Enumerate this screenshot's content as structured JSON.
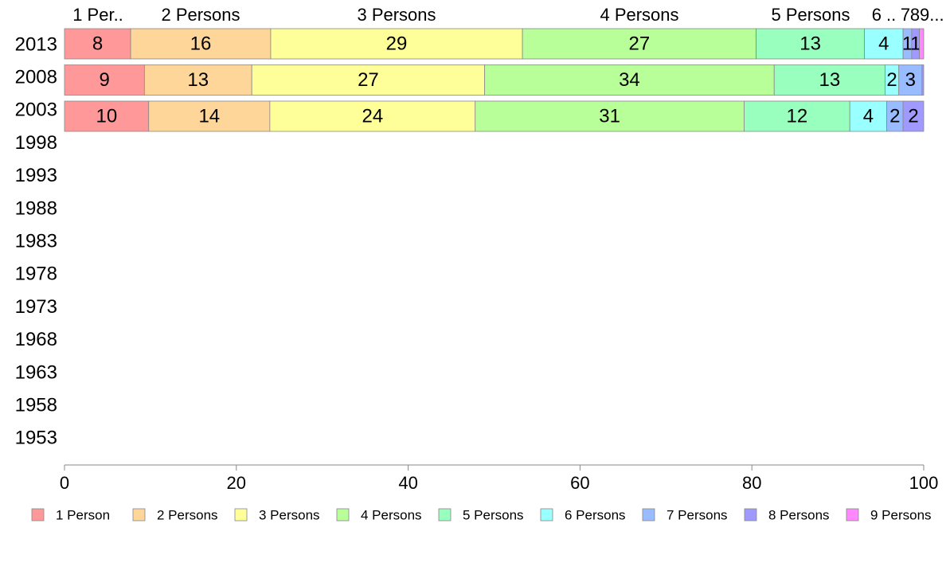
{
  "chart_data": {
    "type": "bar",
    "orientation": "horizontal",
    "stacked": true,
    "title": "",
    "xlabel": "",
    "ylabel": "",
    "xlim": [
      0,
      100
    ],
    "x_ticks": [
      "0",
      "20",
      "40",
      "60",
      "80",
      "100"
    ],
    "categories": [
      "2013",
      "2008",
      "2003",
      "1998",
      "1993",
      "1988",
      "1983",
      "1978",
      "1973",
      "1968",
      "1963",
      "1958",
      "1953"
    ],
    "top_labels": [
      "1 Per..",
      "2 Persons",
      "3 Persons",
      "4 Persons",
      "5 Persons",
      "6 ..",
      "7",
      "8",
      "9..."
    ],
    "legend_position": "bottom",
    "grid": false,
    "series": [
      {
        "name": "1 Person",
        "color": "#ff9999",
        "values": [
          7.7,
          9.3,
          9.8,
          null,
          null,
          null,
          null,
          null,
          null,
          null,
          null,
          null,
          null
        ],
        "labels": [
          "8",
          "9",
          "10"
        ]
      },
      {
        "name": "2 Persons",
        "color": "#ffd699",
        "values": [
          16.3,
          12.5,
          14.1,
          null,
          null,
          null,
          null,
          null,
          null,
          null,
          null,
          null,
          null
        ],
        "labels": [
          "16",
          "13",
          "14"
        ]
      },
      {
        "name": "3 Persons",
        "color": "#ffff99",
        "values": [
          29.3,
          27.1,
          23.9,
          null,
          null,
          null,
          null,
          null,
          null,
          null,
          null,
          null,
          null
        ],
        "labels": [
          "29",
          "27",
          "24"
        ]
      },
      {
        "name": "4 Persons",
        "color": "#b8ff99",
        "values": [
          27.2,
          33.7,
          31.3,
          null,
          null,
          null,
          null,
          null,
          null,
          null,
          null,
          null,
          null
        ],
        "labels": [
          "27",
          "34",
          "31"
        ]
      },
      {
        "name": "5 Persons",
        "color": "#99ffbe",
        "values": [
          12.6,
          12.9,
          12.3,
          null,
          null,
          null,
          null,
          null,
          null,
          null,
          null,
          null,
          null
        ],
        "labels": [
          "13",
          "13",
          "12"
        ]
      },
      {
        "name": "6 Persons",
        "color": "#99ffff",
        "values": [
          4.5,
          1.6,
          4.3,
          null,
          null,
          null,
          null,
          null,
          null,
          null,
          null,
          null,
          null
        ],
        "labels": [
          "4",
          "2",
          "4"
        ]
      },
      {
        "name": "7 Persons",
        "color": "#99bbff",
        "values": [
          1.0,
          2.7,
          1.9,
          null,
          null,
          null,
          null,
          null,
          null,
          null,
          null,
          null,
          null
        ],
        "labels": [
          "1",
          "3",
          "2"
        ]
      },
      {
        "name": "8 Persons",
        "color": "#a099ff",
        "values": [
          0.9,
          0.2,
          2.4,
          null,
          null,
          null,
          null,
          null,
          null,
          null,
          null,
          null,
          null
        ],
        "labels": [
          "1",
          "",
          "2"
        ]
      },
      {
        "name": "9 Persons",
        "color": "#ff88ff",
        "values": [
          0.5,
          null,
          null,
          null,
          null,
          null,
          null,
          null,
          null,
          null,
          null,
          null,
          null
        ],
        "labels": [
          "",
          "",
          ""
        ]
      }
    ]
  }
}
